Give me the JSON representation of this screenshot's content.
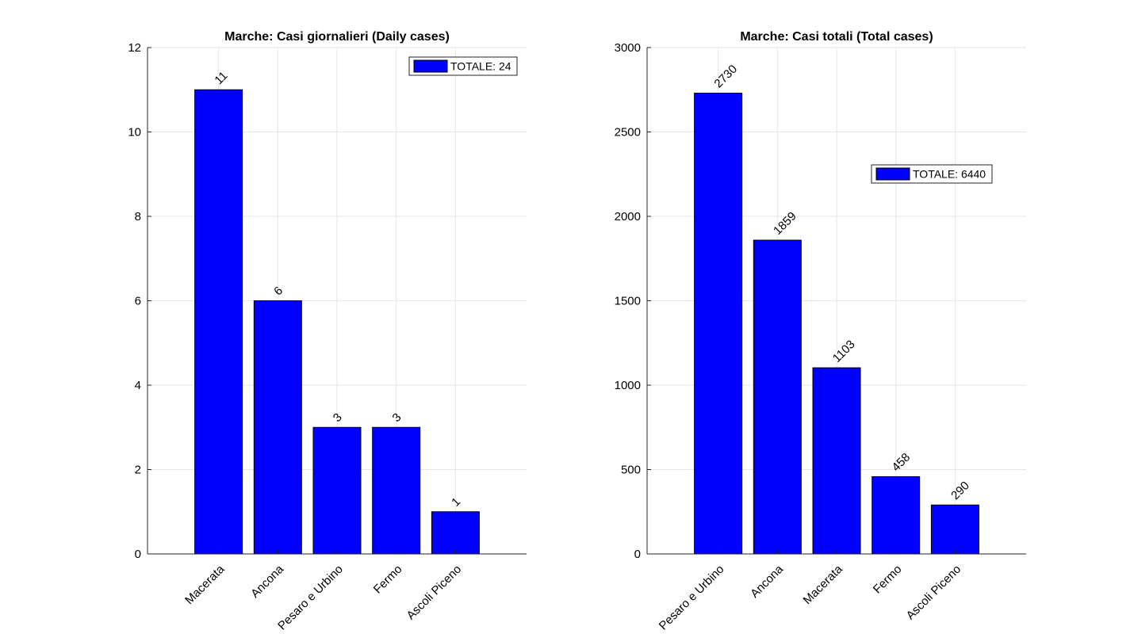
{
  "chart_data": [
    {
      "type": "bar",
      "title": "Marche: Casi giornalieri (Daily cases)",
      "categories": [
        "Macerata",
        "Ancona",
        "Pesaro e Urbino",
        "Fermo",
        "Ascoli Piceno"
      ],
      "values": [
        11,
        6,
        3,
        3,
        1
      ],
      "data_labels": [
        "11",
        "6",
        "3",
        "3",
        "1"
      ],
      "ylim": [
        0,
        12
      ],
      "yticks": [
        0,
        2,
        4,
        6,
        8,
        10,
        12
      ],
      "ytick_labels": [
        "0",
        "2",
        "4",
        "6",
        "8",
        "10",
        "12"
      ],
      "legend": "TOTALE: 24",
      "legend_location": "top-right",
      "grid": true,
      "bar_color": "#0000ff",
      "xlabel": "",
      "ylabel": ""
    },
    {
      "type": "bar",
      "title": "Marche: Casi totali (Total cases)",
      "categories": [
        "Pesaro e Urbino",
        "Ancona",
        "Macerata",
        "Fermo",
        "Ascoli Piceno"
      ],
      "values": [
        2730,
        1859,
        1103,
        458,
        290
      ],
      "data_labels": [
        "2730",
        "1859",
        "1103",
        "458",
        "290"
      ],
      "ylim": [
        0,
        3000
      ],
      "yticks": [
        0,
        500,
        1000,
        1500,
        2000,
        2500,
        3000
      ],
      "ytick_labels": [
        "0",
        "500",
        "1000",
        "1500",
        "2000",
        "2500",
        "3000"
      ],
      "legend": "TOTALE: 6440",
      "legend_location": "upper right",
      "grid": true,
      "bar_color": "#0000ff",
      "xlabel": "",
      "ylabel": ""
    }
  ]
}
